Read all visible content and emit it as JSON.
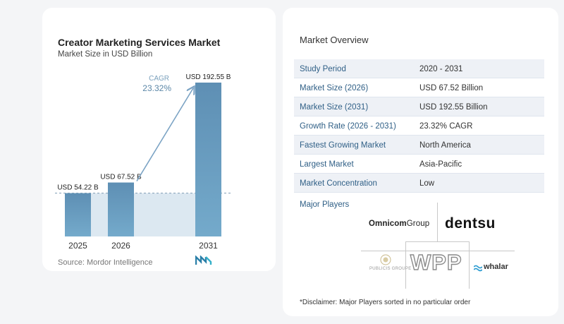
{
  "chart_data": {
    "type": "bar",
    "title": "Creator Marketing Services Market",
    "subtitle": "Market Size in USD Billion",
    "categories": [
      "2025",
      "2026",
      "2031"
    ],
    "values": [
      54.22,
      67.52,
      192.55
    ],
    "data_labels": [
      "USD 54.22 B",
      "USD 67.52 B",
      "USD 192.55 B"
    ],
    "annotation": {
      "label": "CAGR",
      "value": "23.32%"
    },
    "ylim": [
      0,
      200
    ],
    "grid": false,
    "colors": {
      "bar": "#5e8fb4",
      "bar_light": "#6fa3c8",
      "shade": "#dce8f1",
      "arrow": "#7ba3c4"
    }
  },
  "source": "Source:  Mordor Intelligence",
  "overview": {
    "title": "Market Overview",
    "rows": [
      {
        "key": "Study Period",
        "value": "2020 - 2031"
      },
      {
        "key": "Market Size (2026)",
        "value": "USD 67.52 Billion"
      },
      {
        "key": "Market Size (2031)",
        "value": "USD 192.55 Billion"
      },
      {
        "key": "Growth Rate (2026 - 2031)",
        "value": "23.32% CAGR"
      },
      {
        "key": "Fastest Growing Market",
        "value": "North America"
      },
      {
        "key": "Largest Market",
        "value": "Asia-Pacific"
      },
      {
        "key": "Market Concentration",
        "value": "Low"
      }
    ]
  },
  "major_players": {
    "title": "Major Players",
    "omnicom_a": "Omnicom",
    "omnicom_b": "Group",
    "dentsu": "dentsu",
    "publicis": "PUBLICIS GROUPE",
    "wpp": "WPP",
    "whalar": "whalar"
  },
  "disclaimer": "*Disclaimer: Major Players sorted in no particular order"
}
